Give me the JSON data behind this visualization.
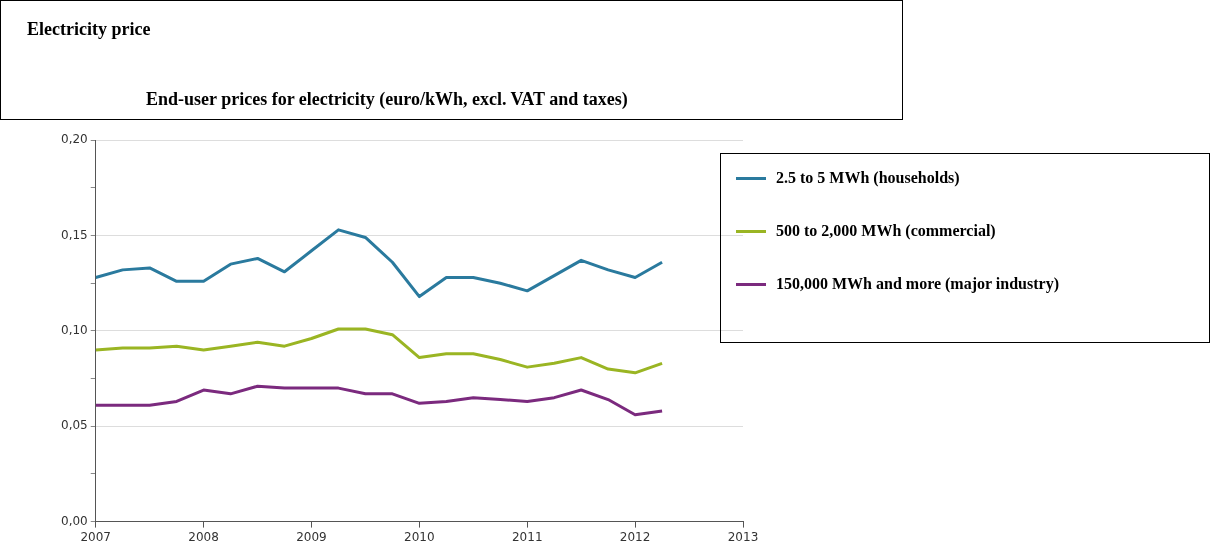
{
  "chart_data": {
    "type": "line",
    "title": "Electricity price",
    "subtitle": "End-user prices for electricity (euro/kWh, excl. VAT and taxes)",
    "x": [
      2007,
      2007.25,
      2007.5,
      2007.75,
      2008,
      2008.25,
      2008.5,
      2008.75,
      2009,
      2009.25,
      2009.5,
      2009.75,
      2010,
      2010.25,
      2010.5,
      2010.75,
      2011,
      2011.25,
      2011.5,
      2011.75,
      2012,
      2012.25
    ],
    "series": [
      {
        "name": "2.5 to 5 MWh (households)",
        "color": "#2a7a9e",
        "values": [
          0.128,
          0.132,
          0.133,
          0.126,
          0.126,
          0.135,
          0.138,
          0.131,
          0.142,
          0.153,
          0.149,
          0.136,
          0.118,
          0.128,
          0.128,
          0.125,
          0.121,
          0.129,
          0.137,
          0.132,
          0.128,
          0.136
        ]
      },
      {
        "name": "500 to 2,000 MWh (commercial)",
        "color": "#9ab523",
        "values": [
          0.09,
          0.091,
          0.091,
          0.092,
          0.09,
          0.092,
          0.094,
          0.092,
          0.096,
          0.101,
          0.101,
          0.098,
          0.086,
          0.088,
          0.088,
          0.085,
          0.081,
          0.083,
          0.086,
          0.08,
          0.078,
          0.083
        ]
      },
      {
        "name": "150,000 MWh and more (major industry)",
        "color": "#7b2a7e",
        "values": [
          0.061,
          0.061,
          0.061,
          0.063,
          0.069,
          0.067,
          0.071,
          0.07,
          0.07,
          0.07,
          0.067,
          0.067,
          0.062,
          0.063,
          0.065,
          0.064,
          0.063,
          0.065,
          0.069,
          0.064,
          0.056,
          0.058
        ]
      }
    ],
    "xlim": [
      2007,
      2013
    ],
    "xticks": [
      2007,
      2008,
      2009,
      2010,
      2011,
      2012,
      2013
    ],
    "ylim": [
      0,
      0.2
    ],
    "yticks": [
      {
        "value": 0,
        "label": "0,00"
      },
      {
        "value": 0.025,
        "label": null
      },
      {
        "value": 0.05,
        "label": "0,05"
      },
      {
        "value": 0.075,
        "label": null
      },
      {
        "value": 0.1,
        "label": "0,10"
      },
      {
        "value": 0.125,
        "label": null
      },
      {
        "value": 0.15,
        "label": "0,15"
      },
      {
        "value": 0.175,
        "label": null
      },
      {
        "value": 0.2,
        "label": "0,20"
      }
    ],
    "grid": "y",
    "legend": "right",
    "marker": "none",
    "line_style": "solid"
  }
}
